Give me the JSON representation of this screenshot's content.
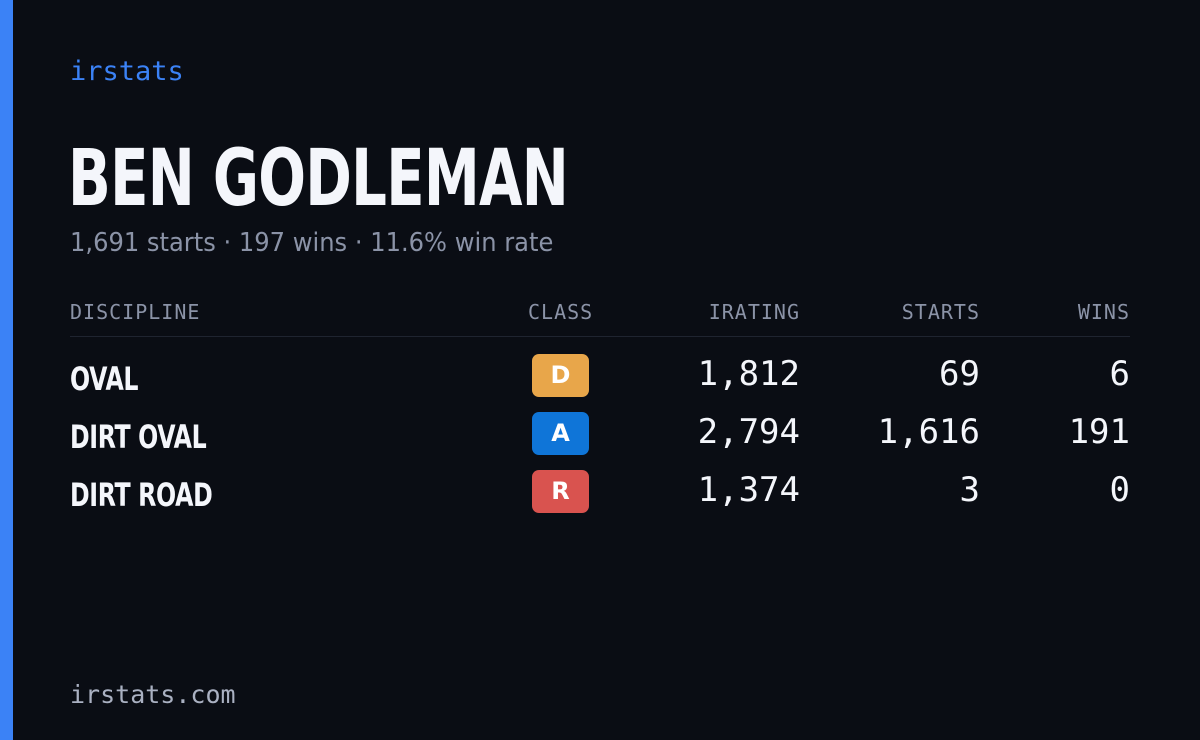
{
  "brand": "irstats",
  "player": {
    "name": "BEN GODLEMAN",
    "summary": "1,691 starts · 197 wins · 11.6% win rate"
  },
  "table": {
    "headers": {
      "discipline": "DISCIPLINE",
      "class": "CLASS",
      "irating": "IRATING",
      "starts": "STARTS",
      "wins": "WINS"
    },
    "rows": [
      {
        "discipline": "OVAL",
        "class": "D",
        "class_color": "#e8a64a",
        "irating": "1,812",
        "starts": "69",
        "wins": "6"
      },
      {
        "discipline": "DIRT OVAL",
        "class": "A",
        "class_color": "#0f75d8",
        "irating": "2,794",
        "starts": "1,616",
        "wins": "191"
      },
      {
        "discipline": "DIRT ROAD",
        "class": "R",
        "class_color": "#d9534f",
        "irating": "1,374",
        "starts": "3",
        "wins": "0"
      }
    ]
  },
  "footer": "irstats.com",
  "colors": {
    "background": "#0a0d14",
    "accent": "#3b82f6",
    "text_primary": "#f4f6fb",
    "text_muted": "#8b93a7"
  }
}
